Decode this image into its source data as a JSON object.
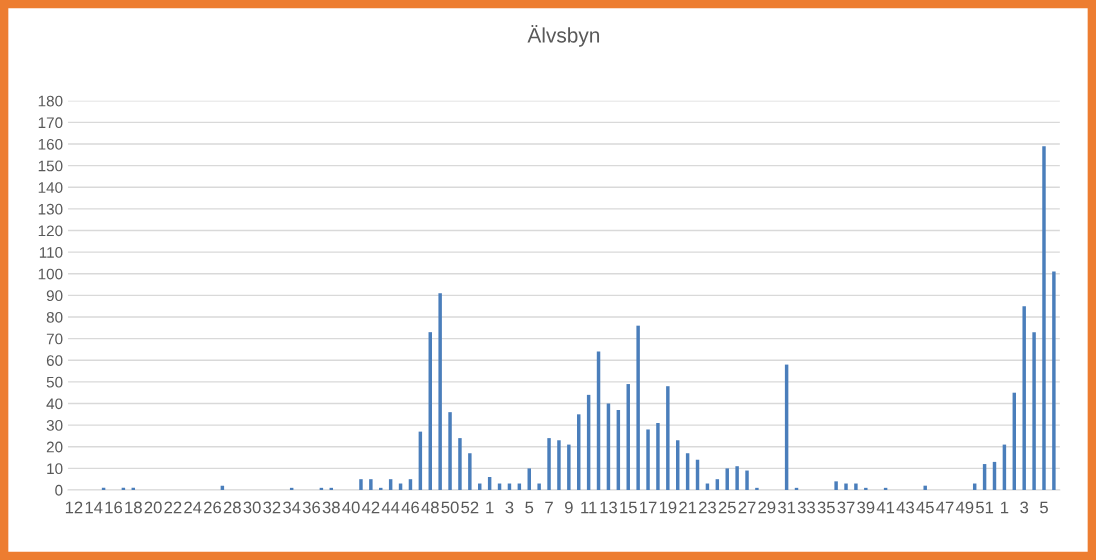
{
  "chart_data": {
    "type": "bar",
    "title": "Älvsbyn",
    "categories": [
      "12",
      null,
      "14",
      null,
      "16",
      null,
      "18",
      null,
      "20",
      null,
      "22",
      null,
      "24",
      null,
      "26",
      null,
      "28",
      null,
      "30",
      null,
      "32",
      null,
      "34",
      null,
      "36",
      null,
      "38",
      null,
      "40",
      null,
      "42",
      null,
      "44",
      null,
      "46",
      null,
      "48",
      null,
      "50",
      null,
      "52",
      null,
      "1",
      null,
      "3",
      null,
      "5",
      null,
      "7",
      null,
      "9",
      null,
      "11",
      null,
      "13",
      null,
      "15",
      null,
      "17",
      null,
      "19",
      null,
      "21",
      null,
      "23",
      null,
      "25",
      null,
      "27",
      null,
      "29",
      null,
      "31",
      null,
      "33",
      null,
      "35",
      null,
      "37",
      null,
      "39",
      null,
      "41",
      null,
      "43",
      null,
      "45",
      null,
      "47",
      null,
      "49",
      null,
      "51",
      null,
      "1",
      null,
      "3",
      null,
      "5",
      null
    ],
    "values": [
      0,
      0,
      0,
      1,
      0,
      1,
      1,
      0,
      0,
      0,
      0,
      0,
      0,
      0,
      0,
      2,
      0,
      0,
      0,
      0,
      0,
      0,
      1,
      0,
      0,
      1,
      1,
      0,
      0,
      5,
      5,
      1,
      5,
      3,
      5,
      27,
      73,
      91,
      36,
      24,
      17,
      3,
      6,
      3,
      3,
      3,
      10,
      3,
      24,
      23,
      21,
      35,
      44,
      64,
      40,
      37,
      49,
      76,
      28,
      31,
      48,
      23,
      17,
      14,
      3,
      5,
      10,
      11,
      9,
      1,
      0,
      0,
      58,
      1,
      0,
      0,
      0,
      4,
      3,
      3,
      1,
      0,
      1,
      0,
      0,
      0,
      2,
      0,
      0,
      0,
      0,
      3,
      12,
      13,
      21,
      45,
      85,
      73,
      159,
      101
    ],
    "color": "#4a7ebb",
    "ylim": [
      0,
      180
    ],
    "yticks": [
      0,
      10,
      20,
      30,
      40,
      50,
      60,
      70,
      80,
      90,
      100,
      110,
      120,
      130,
      140,
      150,
      160,
      170,
      180
    ],
    "grid": "y"
  }
}
